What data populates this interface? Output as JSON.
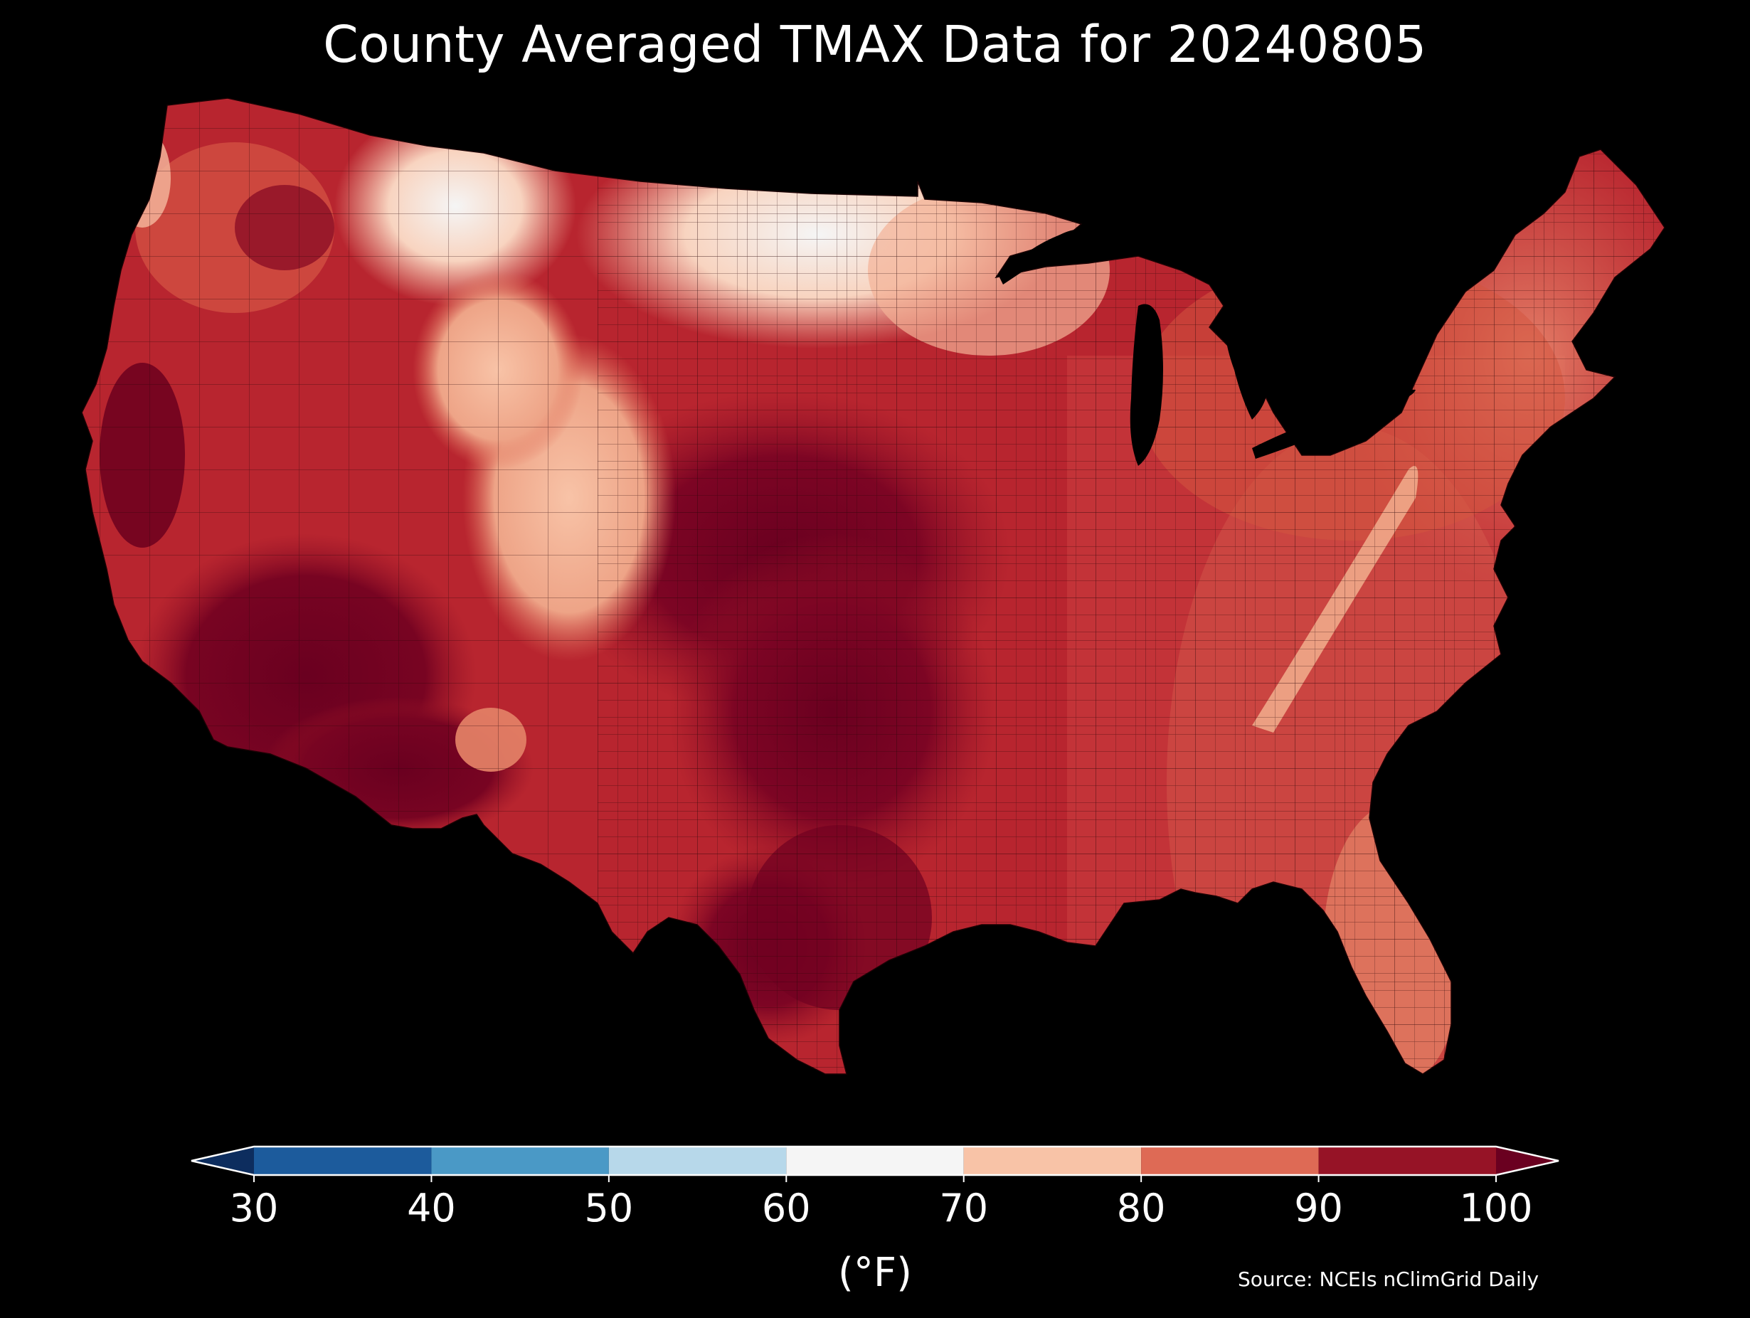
{
  "title": "County Averaged TMAX Data for 20240805",
  "source": "Source: NCEIs nClimGrid Daily",
  "colorbar": {
    "label": "(°F)",
    "ticks": [
      "30",
      "40",
      "50",
      "60",
      "70",
      "80",
      "90",
      "100"
    ],
    "bins": [
      {
        "from": 30,
        "to": 40,
        "color": "#1c5b9c"
      },
      {
        "from": 40,
        "to": 50,
        "color": "#4a99c6"
      },
      {
        "from": 50,
        "to": 60,
        "color": "#b7d8ea"
      },
      {
        "from": 60,
        "to": 70,
        "color": "#f5f5f5"
      },
      {
        "from": 70,
        "to": 80,
        "color": "#f8c3a7"
      },
      {
        "from": 80,
        "to": 90,
        "color": "#de6a55"
      },
      {
        "from": 90,
        "to": 100,
        "color": "#961326"
      }
    ],
    "under_color": "#0d2d5e",
    "over_color": "#6a0020",
    "extend": "both"
  },
  "colors": {
    "background": "#000000",
    "lakes": "#000000",
    "county_borders": "#3a0a10"
  }
}
